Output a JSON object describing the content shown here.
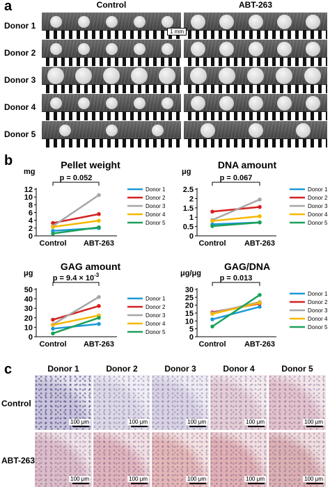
{
  "panel_a": {
    "letter": "a",
    "columns": [
      "Control",
      "ABT-263"
    ],
    "rows": [
      "Donor 1",
      "Donor 2",
      "Donor 3",
      "Donor 4",
      "Donor 5"
    ],
    "scale_label": "1 mm"
  },
  "panel_b": {
    "letter": "b"
  },
  "chart_data": [
    {
      "type": "line",
      "title": "Pellet weight",
      "unit": "mg",
      "categories": [
        "Control",
        "ABT-263"
      ],
      "ylim": [
        0,
        12
      ],
      "yticks": [
        0,
        2,
        4,
        6,
        8,
        10,
        12
      ],
      "annotation": "p = 0.052",
      "series": [
        {
          "name": "Donor 1",
          "color": "#1b9ad6",
          "values": [
            1.3,
            2.0
          ]
        },
        {
          "name": "Donor 2",
          "color": "#d62020",
          "values": [
            3.3,
            5.6
          ]
        },
        {
          "name": "Donor 3",
          "color": "#a6a6a6",
          "values": [
            2.5,
            10.5
          ]
        },
        {
          "name": "Donor 4",
          "color": "#f5b800",
          "values": [
            2.3,
            3.9
          ]
        },
        {
          "name": "Donor 5",
          "color": "#1aa15a",
          "values": [
            0.6,
            2.2
          ]
        }
      ]
    },
    {
      "type": "line",
      "title": "DNA amount",
      "unit": "μg",
      "categories": [
        "Control",
        "ABT-263"
      ],
      "ylim": [
        0,
        2.5
      ],
      "yticks": [
        0,
        0.5,
        1,
        1.5,
        2,
        2.5
      ],
      "annotation": "p = 0.067",
      "series": [
        {
          "name": "Donor 1",
          "color": "#1b9ad6",
          "values": [
            0.62,
            0.72
          ]
        },
        {
          "name": "Donor 2",
          "color": "#d62020",
          "values": [
            1.3,
            1.55
          ]
        },
        {
          "name": "Donor 3",
          "color": "#a6a6a6",
          "values": [
            0.85,
            1.95
          ]
        },
        {
          "name": "Donor 4",
          "color": "#f5b800",
          "values": [
            0.8,
            1.05
          ]
        },
        {
          "name": "Donor 5",
          "color": "#1aa15a",
          "values": [
            0.52,
            0.72
          ]
        }
      ]
    },
    {
      "type": "line",
      "title": "GAG amount",
      "unit": "μg",
      "categories": [
        "Control",
        "ABT-263"
      ],
      "ylim": [
        0,
        50
      ],
      "yticks": [
        0,
        10,
        20,
        30,
        40,
        50
      ],
      "annotation": "p = 9.4 × 10",
      "annotation_exp": "-3",
      "series": [
        {
          "name": "Donor 1",
          "color": "#1b9ad6",
          "values": [
            8.5,
            13.5
          ]
        },
        {
          "name": "Donor 2",
          "color": "#d62020",
          "values": [
            18,
            32.5
          ]
        },
        {
          "name": "Donor 3",
          "color": "#a6a6a6",
          "values": [
            13,
            42
          ]
        },
        {
          "name": "Donor 4",
          "color": "#f5b800",
          "values": [
            12.5,
            22.5
          ]
        },
        {
          "name": "Donor 5",
          "color": "#1aa15a",
          "values": [
            3.5,
            20
          ]
        }
      ]
    },
    {
      "type": "line",
      "title": "GAG/DNA",
      "unit": "μg/μg",
      "categories": [
        "Control",
        "ABT-263"
      ],
      "ylim": [
        0,
        30
      ],
      "yticks": [
        0,
        5,
        10,
        15,
        20,
        25,
        30
      ],
      "annotation": "p = 0.013",
      "series": [
        {
          "name": "Donor 1",
          "color": "#1b9ad6",
          "values": [
            11,
            19
          ]
        },
        {
          "name": "Donor 2",
          "color": "#d62020",
          "values": [
            15.5,
            21
          ]
        },
        {
          "name": "Donor 3",
          "color": "#a6a6a6",
          "values": [
            15,
            22
          ]
        },
        {
          "name": "Donor 4",
          "color": "#f5b800",
          "values": [
            14.5,
            21.5
          ]
        },
        {
          "name": "Donor 5",
          "color": "#1aa15a",
          "values": [
            6.5,
            26.5
          ]
        }
      ]
    }
  ],
  "panel_c": {
    "letter": "c",
    "columns": [
      "Donor 1",
      "Donor 2",
      "Donor 3",
      "Donor 4",
      "Donor 5"
    ],
    "rows": [
      "Control",
      "ABT-263"
    ],
    "scale_label": "100 μm"
  }
}
